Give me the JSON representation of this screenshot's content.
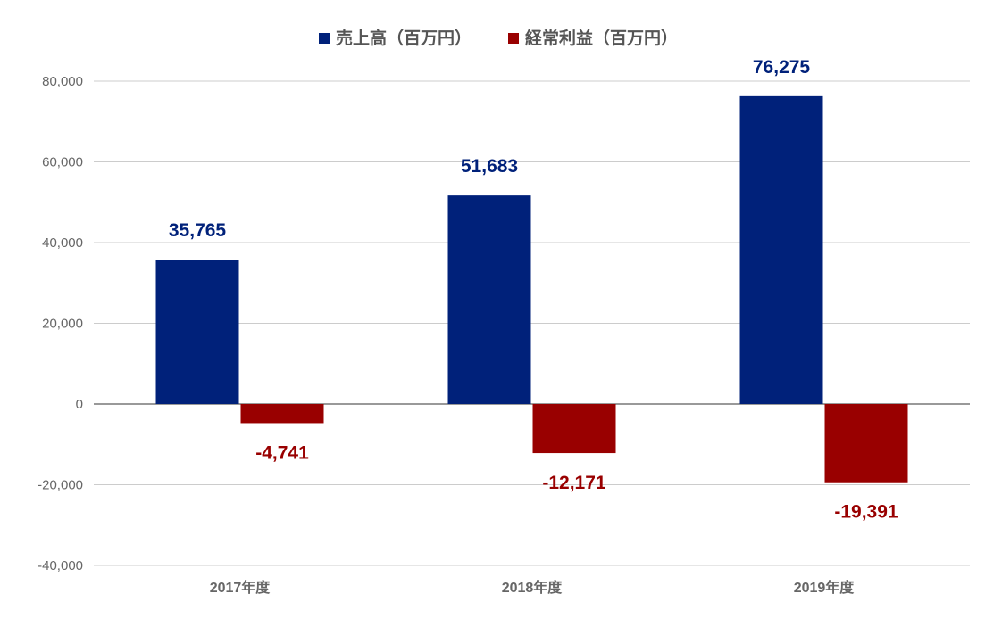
{
  "chart_data": {
    "type": "bar",
    "title": "",
    "xlabel": "",
    "ylabel": "",
    "categories": [
      "2017年度",
      "2018年度",
      "2019年度"
    ],
    "series": [
      {
        "name": "売上高（百万円）",
        "values": [
          35765,
          51683,
          76275
        ],
        "color": "#00217a",
        "value_labels": [
          "35,765",
          "51,683",
          "76,275"
        ]
      },
      {
        "name": "経常利益（百万円）",
        "values": [
          -4741,
          -12171,
          -19391
        ],
        "color": "#990000",
        "value_labels": [
          "-4,741",
          "-12,171",
          "-19,391"
        ]
      }
    ],
    "ylim": [
      -40000,
      80000
    ],
    "yticks": [
      80000,
      60000,
      40000,
      20000,
      0,
      -20000,
      -40000
    ],
    "ytick_labels": [
      "80,000",
      "60,000",
      "40,000",
      "20,000",
      "0",
      "-20,000",
      "-40,000"
    ],
    "grid": true,
    "legend": "top-center"
  }
}
